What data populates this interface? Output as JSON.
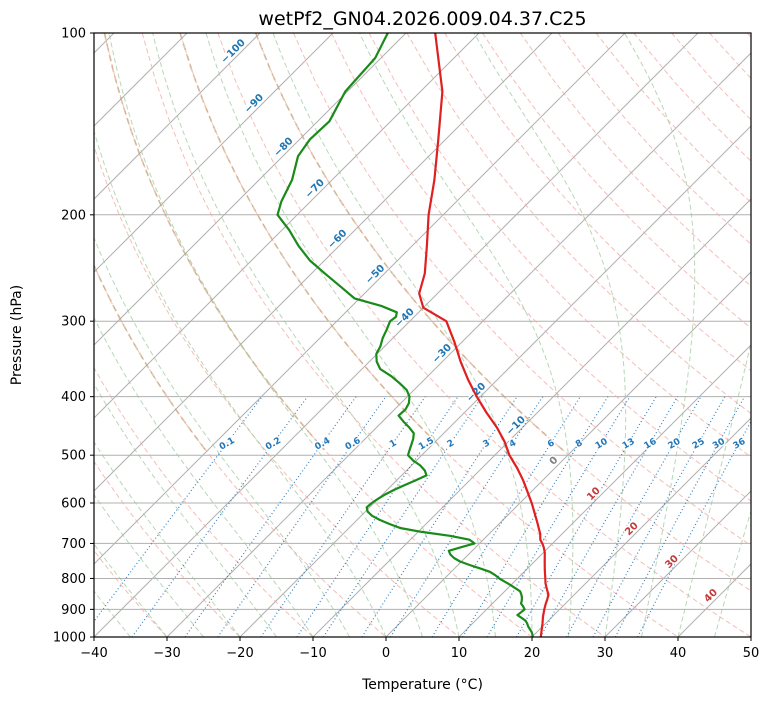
{
  "title": "wetPf2_GN04.2026.009.04.37.C25",
  "chart_data": {
    "type": "line",
    "variant": "skew-t-log-p",
    "title": "wetPf2_GN04.2026.009.04.37.C25",
    "xlabel": "Temperature (°C)",
    "ylabel": "Pressure (hPa)",
    "xlim": [
      -40,
      50
    ],
    "pressure_lim": [
      100,
      1000
    ],
    "y_scale": "log",
    "skew": "45deg-pixel",
    "grid": true,
    "x_ticks": [
      -40,
      -30,
      -20,
      -10,
      0,
      10,
      20,
      30,
      40,
      50
    ],
    "y_ticks": [
      100,
      200,
      300,
      400,
      500,
      600,
      700,
      800,
      900,
      1000
    ],
    "isobars": [
      100,
      200,
      300,
      400,
      500,
      600,
      700,
      800,
      900,
      1000
    ],
    "isotherms": {
      "start": -120,
      "end": 50,
      "step": 10
    },
    "dry_adiabats": {
      "thetas": [
        -30,
        -20,
        -10,
        0,
        10,
        20,
        30,
        40,
        50,
        60,
        70,
        80,
        90,
        100,
        110,
        120,
        130,
        140,
        150,
        160,
        170,
        180,
        190
      ]
    },
    "tan_adiabats": {
      "thetas": [
        -20,
        0,
        20,
        40,
        60
      ],
      "max_pressure": 500
    },
    "moist_adiabats": {
      "start_temps": [
        -40,
        -35,
        -30,
        -25,
        -20,
        -15,
        -10,
        -5,
        0,
        5,
        10,
        15,
        20,
        25,
        30,
        35,
        40,
        45
      ]
    },
    "mixing_ratio": {
      "values": [
        0.1,
        0.2,
        0.4,
        0.6,
        1,
        1.5,
        2,
        3,
        4,
        6,
        8,
        10,
        13,
        16,
        20,
        25,
        30,
        36
      ],
      "label_pressure": 478,
      "line_top_pressure": 400
    },
    "isotherm_labels": [
      {
        "t": -100,
        "p": 109
      },
      {
        "t": -90,
        "p": 133
      },
      {
        "t": -80,
        "p": 157
      },
      {
        "t": -70,
        "p": 184
      },
      {
        "t": -60,
        "p": 223
      },
      {
        "t": -50,
        "p": 255
      },
      {
        "t": -40,
        "p": 301
      },
      {
        "t": -30,
        "p": 345
      },
      {
        "t": -20,
        "p": 400
      },
      {
        "t": -10,
        "p": 454
      },
      {
        "t": 0,
        "p": 519
      },
      {
        "t": 10,
        "p": 589
      },
      {
        "t": 20,
        "p": 673
      },
      {
        "t": 30,
        "p": 763
      },
      {
        "t": 40,
        "p": 868
      }
    ],
    "series": [
      {
        "name": "temperature",
        "points": [
          [
            100,
            -76
          ],
          [
            125,
            -67
          ],
          [
            150,
            -61
          ],
          [
            175,
            -56
          ],
          [
            200,
            -52
          ],
          [
            225,
            -48
          ],
          [
            250,
            -44.5
          ],
          [
            270,
            -42.5
          ],
          [
            285,
            -40
          ],
          [
            300,
            -35
          ],
          [
            325,
            -31
          ],
          [
            350,
            -27.5
          ],
          [
            375,
            -24
          ],
          [
            400,
            -20.5
          ],
          [
            425,
            -17
          ],
          [
            450,
            -13.5
          ],
          [
            475,
            -10.5
          ],
          [
            500,
            -8
          ],
          [
            525,
            -5.2
          ],
          [
            550,
            -2.7
          ],
          [
            575,
            -0.5
          ],
          [
            600,
            1.6
          ],
          [
            625,
            3.5
          ],
          [
            650,
            5.3
          ],
          [
            675,
            7
          ],
          [
            690,
            7.8
          ],
          [
            700,
            8.6
          ],
          [
            710,
            9.3
          ],
          [
            725,
            10.2
          ],
          [
            750,
            11.4
          ],
          [
            775,
            12.6
          ],
          [
            800,
            13.8
          ],
          [
            815,
            14.5
          ],
          [
            830,
            15.3
          ],
          [
            850,
            16.4
          ],
          [
            865,
            16.9
          ],
          [
            880,
            17.3
          ],
          [
            900,
            17.9
          ],
          [
            925,
            18.7
          ],
          [
            950,
            19.6
          ],
          [
            975,
            20.4
          ],
          [
            1000,
            21.2
          ]
        ]
      },
      {
        "name": "dewpoint",
        "points": [
          [
            100,
            -82.5
          ],
          [
            110,
            -80.8
          ],
          [
            125,
            -80.3
          ],
          [
            140,
            -78.4
          ],
          [
            150,
            -78.6
          ],
          [
            160,
            -77.9
          ],
          [
            175,
            -75.5
          ],
          [
            190,
            -74
          ],
          [
            200,
            -72.7
          ],
          [
            212,
            -69
          ],
          [
            225,
            -65.6
          ],
          [
            238,
            -62
          ],
          [
            250,
            -58.2
          ],
          [
            262,
            -54.5
          ],
          [
            275,
            -50.7
          ],
          [
            283,
            -46
          ],
          [
            290,
            -43
          ],
          [
            295,
            -42.5
          ],
          [
            300,
            -42.7
          ],
          [
            310,
            -42
          ],
          [
            320,
            -41.4
          ],
          [
            330,
            -40.6
          ],
          [
            340,
            -40.1
          ],
          [
            350,
            -39
          ],
          [
            360,
            -37.5
          ],
          [
            370,
            -35
          ],
          [
            380,
            -32.9
          ],
          [
            390,
            -31
          ],
          [
            400,
            -29.7
          ],
          [
            410,
            -28.9
          ],
          [
            420,
            -28.5
          ],
          [
            430,
            -28.6
          ],
          [
            440,
            -27.1
          ],
          [
            450,
            -25.5
          ],
          [
            460,
            -24.1
          ],
          [
            470,
            -23.4
          ],
          [
            480,
            -22.9
          ],
          [
            490,
            -22.4
          ],
          [
            500,
            -21.9
          ],
          [
            510,
            -20.5
          ],
          [
            520,
            -18.8
          ],
          [
            530,
            -17.5
          ],
          [
            540,
            -16.6
          ],
          [
            550,
            -17.4
          ],
          [
            560,
            -18.2
          ],
          [
            570,
            -19
          ],
          [
            580,
            -19.6
          ],
          [
            590,
            -20
          ],
          [
            600,
            -20.3
          ],
          [
            610,
            -20.4
          ],
          [
            620,
            -19.7
          ],
          [
            630,
            -18.5
          ],
          [
            640,
            -16.9
          ],
          [
            650,
            -15
          ],
          [
            660,
            -13
          ],
          [
            670,
            -9.5
          ],
          [
            680,
            -5.1
          ],
          [
            690,
            -1.9
          ],
          [
            700,
            -0.7
          ],
          [
            710,
            -2
          ],
          [
            720,
            -3.2
          ],
          [
            730,
            -2.5
          ],
          [
            740,
            -1.5
          ],
          [
            750,
            -0.2
          ],
          [
            760,
            1.6
          ],
          [
            770,
            3.5
          ],
          [
            780,
            5.3
          ],
          [
            790,
            6.5
          ],
          [
            800,
            7.5
          ],
          [
            810,
            8.7
          ],
          [
            820,
            9.9
          ],
          [
            830,
            11
          ],
          [
            840,
            12.1
          ],
          [
            850,
            12.7
          ],
          [
            860,
            13.2
          ],
          [
            870,
            13.6
          ],
          [
            880,
            13.9
          ],
          [
            890,
            14.6
          ],
          [
            900,
            15.2
          ],
          [
            910,
            15.1
          ],
          [
            920,
            15
          ],
          [
            930,
            16
          ],
          [
            940,
            16.9
          ],
          [
            950,
            17.5
          ],
          [
            960,
            18
          ],
          [
            970,
            18.6
          ],
          [
            980,
            19.2
          ],
          [
            990,
            19.7
          ],
          [
            1000,
            20.1
          ]
        ]
      }
    ],
    "colors": {
      "temperature": "#e02020",
      "dewpoint": "#1a8a1a",
      "mixing": "#2277bb",
      "dry_adiabat": "#f0a8a0",
      "moist_adiabat": "#99c699",
      "tan_adiabat": "#c0a070",
      "grid": "#b0b0b0",
      "frame": "#000000",
      "tick_text": "#000000",
      "label_neg": "#1f77b4",
      "label_zero": "#7f7f7f",
      "label_pos": "#c23b3b"
    }
  }
}
